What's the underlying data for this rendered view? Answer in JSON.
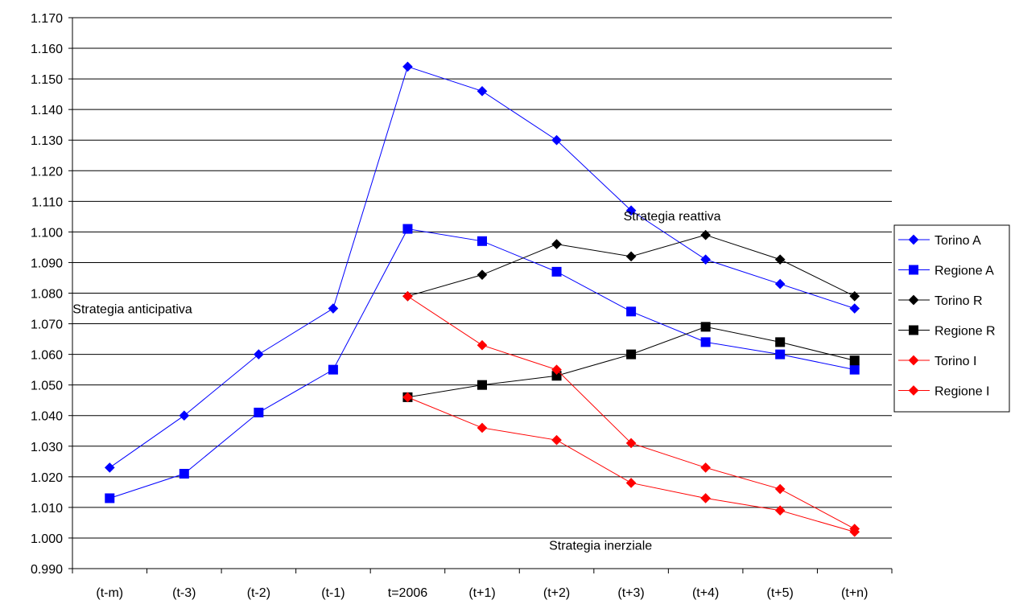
{
  "chart_data": {
    "type": "line",
    "categories": [
      "(t-m)",
      "(t-3)",
      "(t-2)",
      "(t-1)",
      "t=2006",
      "(t+1)",
      "(t+2)",
      "(t+3)",
      "(t+4)",
      "(t+5)",
      "(t+n)"
    ],
    "ylim": [
      0.99,
      1.17
    ],
    "ytick_step": 0.01,
    "grid": "horizontal",
    "legend_position": "right",
    "series": [
      {
        "name": "Torino A",
        "color": "#0000ff",
        "marker": "diamond",
        "values": [
          1.023,
          1.04,
          1.06,
          1.075,
          1.154,
          1.146,
          1.13,
          1.107,
          1.091,
          1.083,
          1.075
        ]
      },
      {
        "name": "Regione A",
        "color": "#0000ff",
        "marker": "square",
        "values": [
          1.013,
          1.021,
          1.041,
          1.055,
          1.101,
          1.097,
          1.087,
          1.074,
          1.064,
          1.06,
          1.055
        ]
      },
      {
        "name": "Torino R",
        "color": "#000000",
        "marker": "diamond",
        "values": [
          null,
          null,
          null,
          null,
          1.079,
          1.086,
          1.096,
          1.092,
          1.099,
          1.091,
          1.079
        ]
      },
      {
        "name": "Regione R",
        "color": "#000000",
        "marker": "square",
        "values": [
          null,
          null,
          null,
          null,
          1.046,
          1.05,
          1.053,
          1.06,
          1.069,
          1.064,
          1.058
        ]
      },
      {
        "name": "Torino I",
        "color": "#ff0000",
        "marker": "diamond",
        "values": [
          null,
          null,
          null,
          null,
          1.079,
          1.063,
          1.055,
          1.031,
          1.023,
          1.016,
          1.003
        ]
      },
      {
        "name": "Regione I",
        "color": "#ff0000",
        "marker": "diamond",
        "values": [
          null,
          null,
          null,
          null,
          1.046,
          1.036,
          1.032,
          1.018,
          1.013,
          1.009,
          1.002
        ]
      }
    ],
    "annotations": [
      {
        "text": "Strategia anticipativa",
        "x": "(t-m)",
        "y": 1.075
      },
      {
        "text": "Strategia reattiva",
        "x": "(t+4)",
        "y": 1.103
      },
      {
        "text": "Strategia inerziale",
        "x": "(t+3)",
        "y": 1.003
      }
    ]
  }
}
